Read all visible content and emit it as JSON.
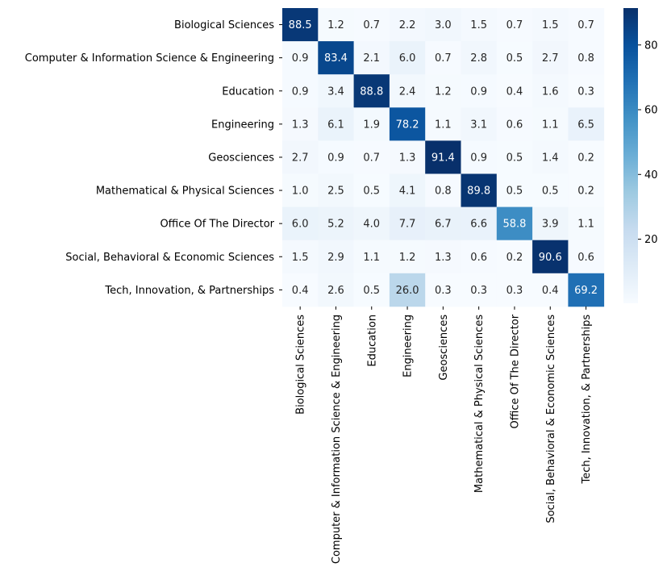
{
  "chart_data": {
    "type": "heatmap",
    "title": "",
    "xlabel": "",
    "ylabel": "",
    "rows": [
      "Biological Sciences",
      "Computer & Information Science & Engineering",
      "Education",
      "Engineering",
      "Geosciences",
      "Mathematical & Physical Sciences",
      "Office Of The Director",
      "Social, Behavioral & Economic Sciences",
      "Tech, Innovation, & Partnerships"
    ],
    "columns": [
      "Biological Sciences",
      "Computer & Information Science & Engineering",
      "Education",
      "Engineering",
      "Geosciences",
      "Mathematical & Physical Sciences",
      "Office Of The Director",
      "Social, Behavioral & Economic Sciences",
      "Tech, Innovation, & Partnerships"
    ],
    "values": [
      [
        88.5,
        1.2,
        0.7,
        2.2,
        3.0,
        1.5,
        0.7,
        1.5,
        0.7
      ],
      [
        0.9,
        83.4,
        2.1,
        6.0,
        0.7,
        2.8,
        0.5,
        2.7,
        0.8
      ],
      [
        0.9,
        3.4,
        88.8,
        2.4,
        1.2,
        0.9,
        0.4,
        1.6,
        0.3
      ],
      [
        1.3,
        6.1,
        1.9,
        78.2,
        1.1,
        3.1,
        0.6,
        1.1,
        6.5
      ],
      [
        2.7,
        0.9,
        0.7,
        1.3,
        91.4,
        0.9,
        0.5,
        1.4,
        0.2
      ],
      [
        1.0,
        2.5,
        0.5,
        4.1,
        0.8,
        89.8,
        0.5,
        0.5,
        0.2
      ],
      [
        6.0,
        5.2,
        4.0,
        7.7,
        6.7,
        6.6,
        58.8,
        3.9,
        1.1
      ],
      [
        1.5,
        2.9,
        1.1,
        1.2,
        1.3,
        0.6,
        0.2,
        90.6,
        0.6
      ],
      [
        0.4,
        2.6,
        0.5,
        26.0,
        0.3,
        0.3,
        0.3,
        0.4,
        69.2
      ]
    ],
    "colormap": "Blues",
    "vmin": 0.2,
    "vmax": 91.4,
    "colorbar": {
      "ticks": [
        20,
        40,
        60,
        80
      ],
      "tick_labels": [
        "20",
        "40",
        "60",
        "80"
      ]
    },
    "annotations": true,
    "grid": false,
    "legend": "colorbar-right"
  }
}
